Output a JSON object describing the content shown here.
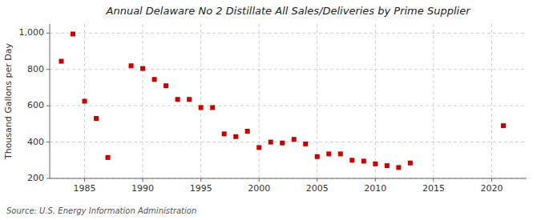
{
  "chart_data": {
    "type": "scatter",
    "title": "Annual Delaware No 2 Distillate All Sales/Deliveries by Prime Supplier",
    "ylabel": "Thousand Gallons per Day",
    "annotations": [
      "Source: U.S. Energy Information Administration"
    ],
    "x": [
      1983,
      1984,
      1985,
      1986,
      1987,
      1989,
      1990,
      1991,
      1992,
      1993,
      1994,
      1995,
      1996,
      1997,
      1998,
      1999,
      2000,
      2001,
      2002,
      2003,
      2004,
      2005,
      2006,
      2007,
      2008,
      2009,
      2010,
      2011,
      2012,
      2013,
      2021
    ],
    "values": [
      845,
      995,
      625,
      530,
      315,
      820,
      805,
      745,
      710,
      635,
      635,
      590,
      590,
      445,
      430,
      460,
      370,
      400,
      395,
      415,
      390,
      320,
      335,
      335,
      300,
      295,
      280,
      270,
      260,
      285,
      490
    ],
    "color": "#cc0000",
    "marker": "square",
    "xlim": [
      1982,
      2023
    ],
    "ylim": [
      200,
      1050
    ],
    "xticks": [
      1985,
      1990,
      1995,
      2000,
      2005,
      2010,
      2015,
      2020
    ],
    "yticks": [
      200,
      400,
      600,
      800,
      {
        "value": 1000,
        "label": "1,000"
      }
    ],
    "grid": true
  }
}
